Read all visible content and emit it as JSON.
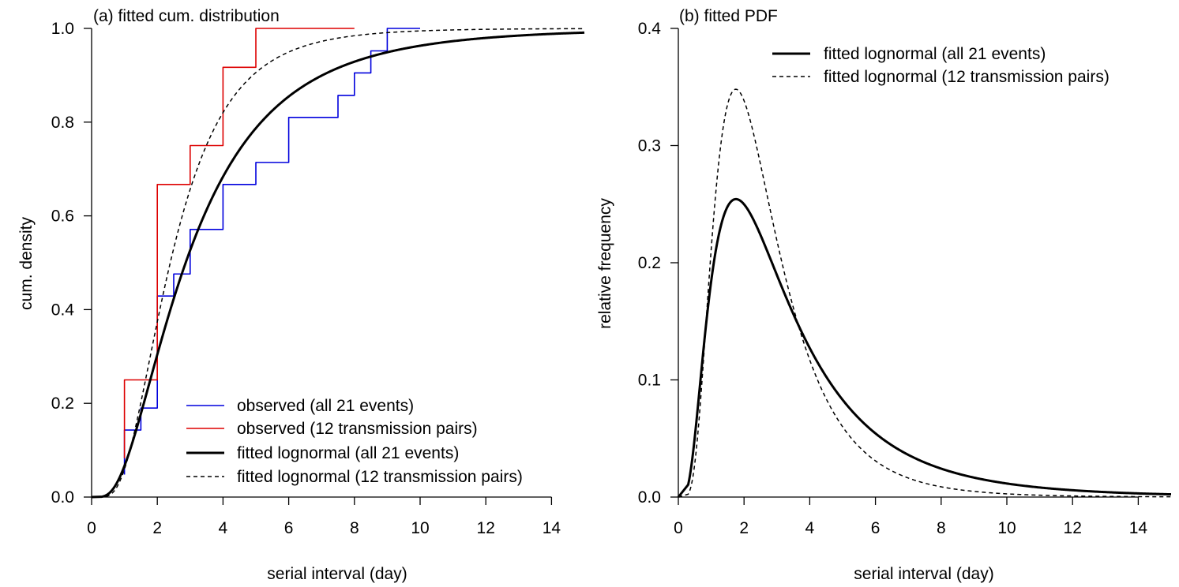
{
  "chart_data": [
    {
      "id": "panel-a",
      "type": "line",
      "title": "(a) fitted cum. distribution",
      "xlabel": "serial interval (day)",
      "ylabel": "cum. density",
      "xlim": [
        0,
        15
      ],
      "ylim": [
        0,
        1.0
      ],
      "xticks": [
        0,
        2,
        4,
        6,
        8,
        10,
        12,
        14
      ],
      "xtick_labels": [
        "0",
        "2",
        "4",
        "6",
        "8",
        "10",
        "12",
        "14"
      ],
      "yticks": [
        0,
        0.2,
        0.4,
        0.6,
        0.8,
        1.0
      ],
      "ytick_labels": [
        "0.0",
        "0.2",
        "0.4",
        "0.6",
        "0.8",
        "1.0"
      ],
      "axes_box": "open",
      "legend_placement": "bottom-right",
      "series": [
        {
          "name": "observed (all 21 events)",
          "kind": "step",
          "color": "#0000dd",
          "width": 1.6,
          "x": [
            1,
            1.5,
            2,
            2.5,
            3,
            4,
            5,
            6,
            7.5,
            8,
            8.5,
            9,
            10
          ],
          "y": [
            0.143,
            0.19,
            0.429,
            0.476,
            0.571,
            0.667,
            0.714,
            0.81,
            0.857,
            0.905,
            0.952,
            1.0,
            1.0
          ],
          "start_y": 0.048
        },
        {
          "name": "observed (12 transmission pairs)",
          "kind": "step",
          "color": "#dd0000",
          "width": 1.6,
          "x": [
            1,
            2,
            3,
            4,
            5,
            8
          ],
          "y": [
            0.25,
            0.667,
            0.75,
            0.917,
            1.0,
            1.0
          ],
          "start_y": 0.083
        },
        {
          "name": "fitted lognormal (all 21 events)",
          "kind": "lognormal_cdf",
          "meanlog": 1.052,
          "sdlog": 0.7,
          "color": "#000000",
          "width": 3,
          "dash": ""
        },
        {
          "name": "fitted lognormal (12 transmission pairs)",
          "kind": "lognormal_cdf",
          "meanlog": 0.873,
          "sdlog": 0.56,
          "color": "#000000",
          "width": 1.5,
          "dash": "5,4"
        }
      ]
    },
    {
      "id": "panel-b",
      "type": "line",
      "title": "(b) fitted PDF",
      "xlabel": "serial interval (day)",
      "ylabel": "relative frequency",
      "xlim": [
        0,
        15
      ],
      "ylim": [
        0,
        0.4
      ],
      "xticks": [
        0,
        2,
        4,
        6,
        8,
        10,
        12,
        14
      ],
      "xtick_labels": [
        "0",
        "2",
        "4",
        "6",
        "8",
        "10",
        "12",
        "14"
      ],
      "yticks": [
        0,
        0.1,
        0.2,
        0.3,
        0.4
      ],
      "ytick_labels": [
        "0.0",
        "0.1",
        "0.2",
        "0.3",
        "0.4"
      ],
      "axes_box": "open",
      "legend_placement": "top-right",
      "series": [
        {
          "name": "fitted lognormal (all 21 events)",
          "kind": "lognormal_pdf",
          "meanlog": 1.052,
          "sdlog": 0.7,
          "color": "#000000",
          "width": 3,
          "dash": ""
        },
        {
          "name": "fitted lognormal (12 transmission pairs)",
          "kind": "lognormal_pdf",
          "meanlog": 0.873,
          "sdlog": 0.56,
          "color": "#000000",
          "width": 1.5,
          "dash": "5,4"
        }
      ]
    }
  ]
}
